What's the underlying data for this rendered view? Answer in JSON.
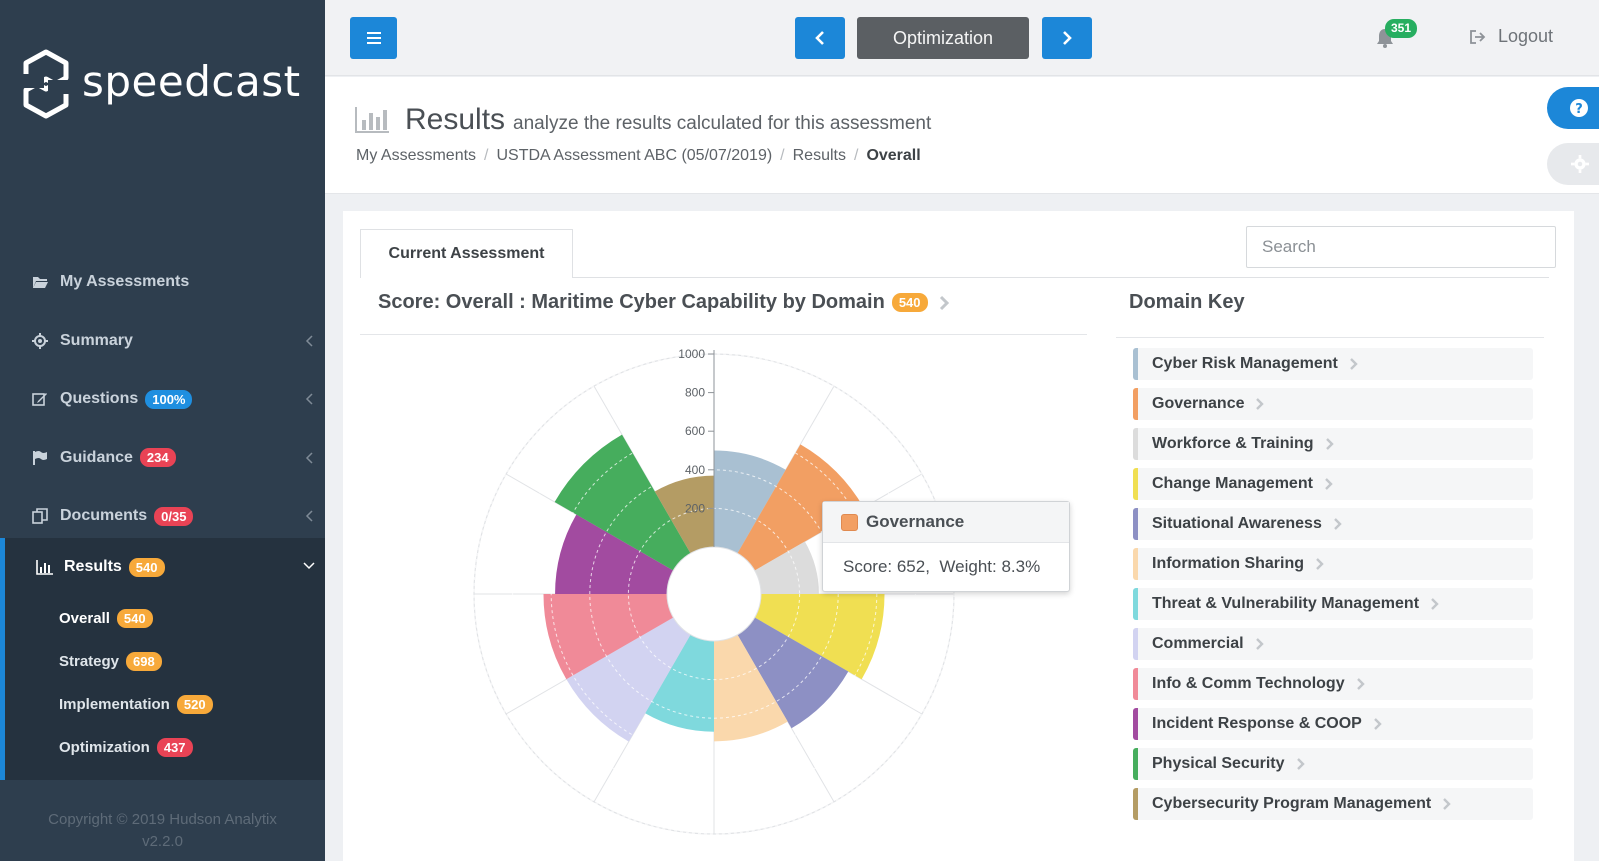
{
  "brand": {
    "name": "speedcast"
  },
  "topbar": {
    "menu_icon": "hamburger-icon",
    "prev_icon": "chevron-left-icon",
    "section_label": "Optimization",
    "next_icon": "chevron-right-icon",
    "notification_count": "351",
    "logout_label": "Logout"
  },
  "sidebar": {
    "items": [
      {
        "label": "My Assessments",
        "icon": "folder-open-icon"
      },
      {
        "label": "Summary",
        "icon": "gear-icon"
      },
      {
        "label": "Questions",
        "icon": "edit-icon",
        "badge": "100%",
        "badge_color": "#1f8fe0"
      },
      {
        "label": "Guidance",
        "icon": "flag-icon",
        "badge": "234",
        "badge_color": "#e94355"
      },
      {
        "label": "Documents",
        "icon": "copy-icon",
        "badge": "0/35",
        "badge_color": "#e94355"
      }
    ],
    "results": {
      "label": "Results",
      "badge": "540",
      "badge_color": "#f7a93a",
      "subitems": [
        {
          "label": "Overall",
          "badge": "540",
          "badge_color": "#f7a93a"
        },
        {
          "label": "Strategy",
          "badge": "698",
          "badge_color": "#f7a93a"
        },
        {
          "label": "Implementation",
          "badge": "520",
          "badge_color": "#f7a93a"
        },
        {
          "label": "Optimization",
          "badge": "437",
          "badge_color": "#e94355"
        }
      ]
    },
    "copyright": "Copyright © 2019 Hudson Analytix",
    "version": "v2.2.0"
  },
  "header": {
    "title": "Results",
    "subtitle": "analyze the results calculated for this assessment",
    "breadcrumbs": [
      "My Assessments",
      "USTDA Assessment ABC (05/07/2019)",
      "Results",
      "Overall"
    ]
  },
  "content": {
    "tab_label": "Current Assessment",
    "search_placeholder": "Search",
    "chart_title": "Score: Overall : Maritime Cyber Capability by Domain",
    "chart_score_badge": "540",
    "domain_key_title": "Domain Key"
  },
  "domains": [
    {
      "label": "Cyber Risk Management",
      "color": "#a9c0d2"
    },
    {
      "label": "Governance",
      "color": "#f29f63"
    },
    {
      "label": "Workforce & Training",
      "color": "#dcdcdc"
    },
    {
      "label": "Change Management",
      "color": "#f0df52"
    },
    {
      "label": "Situational Awareness",
      "color": "#8d90c4"
    },
    {
      "label": "Information Sharing",
      "color": "#fad8ac"
    },
    {
      "label": "Threat & Vulnerability Management",
      "color": "#7fd9dd"
    },
    {
      "label": "Commercial",
      "color": "#d2d3f1"
    },
    {
      "label": "Info & Comm Technology",
      "color": "#f08a98"
    },
    {
      "label": "Incident Response & COOP",
      "color": "#a24ba0"
    },
    {
      "label": "Physical Security",
      "color": "#46ad5d"
    },
    {
      "label": "Cybersecurity Program Management",
      "color": "#b49c64"
    }
  ],
  "chart_data": {
    "type": "polar-area",
    "title": "Score: Overall : Maritime Cyber Capability by Domain",
    "r_range": [
      0,
      1000
    ],
    "r_ticks": [
      "1000",
      "800",
      "600",
      "400",
      "200"
    ],
    "categories": [
      "Cyber Risk Management",
      "Governance",
      "Workforce & Training",
      "Change Management",
      "Situational Awareness",
      "Information Sharing",
      "Threat & Vulnerability Management",
      "Commercial",
      "Info & Comm Technology",
      "Incident Response & COOP",
      "Physical Security",
      "Cybersecurity Program Management"
    ],
    "values": [
      500,
      652,
      300,
      640,
      560,
      520,
      470,
      640,
      640,
      580,
      710,
      370
    ]
  },
  "tooltip": {
    "title": "Governance",
    "score_text": "Score: 652,",
    "weight_text": "Weight: 8.3%",
    "swatch_color": "#f29f63"
  }
}
